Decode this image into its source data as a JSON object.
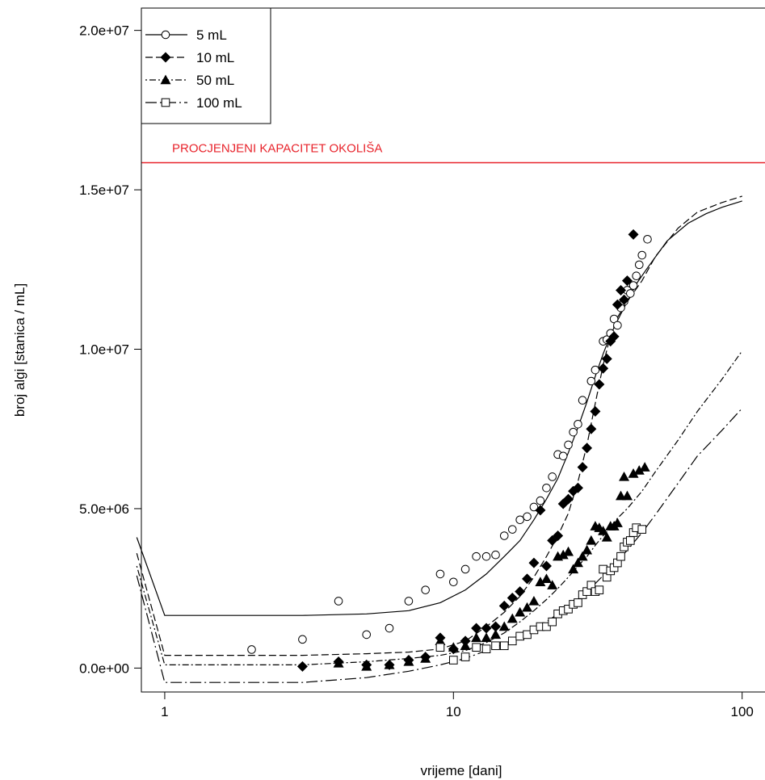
{
  "chart_data": {
    "type": "scatter",
    "xlabel": "vrijeme [dani]",
    "ylabel": "broj algi [stanica / mL]",
    "x_scale": "log",
    "xlim": [
      0.83,
      120
    ],
    "ylim": [
      -750000,
      20700000
    ],
    "x_ticks": [
      1,
      10,
      100
    ],
    "x_tick_labels": [
      "1",
      "10",
      "100"
    ],
    "y_ticks": [
      0,
      5000000,
      10000000,
      15000000,
      20000000
    ],
    "y_tick_labels": [
      "0.0e+00",
      "5.0e+06",
      "1.0e+07",
      "1.5e+07",
      "2.0e+07"
    ],
    "legend_position": "top-left",
    "reference_line": {
      "y": 15850000,
      "label": "PROCJENJENI KAPACITET OKOLIŠA",
      "color": "#e8232b"
    },
    "series": [
      {
        "name": "5 mL",
        "marker": "circle-open",
        "line_style": "solid",
        "points": [
          [
            2,
            580000
          ],
          [
            3,
            900000
          ],
          [
            4,
            2100000
          ],
          [
            5,
            1050000
          ],
          [
            6,
            1250000
          ],
          [
            7,
            2100000
          ],
          [
            8,
            2450000
          ],
          [
            9,
            2950000
          ],
          [
            10,
            2700000
          ],
          [
            11,
            3100000
          ],
          [
            12,
            3500000
          ],
          [
            13,
            3500000
          ],
          [
            14,
            3550000
          ],
          [
            15,
            4150000
          ],
          [
            16,
            4350000
          ],
          [
            17,
            4650000
          ],
          [
            18,
            4750000
          ],
          [
            19,
            5050000
          ],
          [
            20,
            5250000
          ],
          [
            21,
            5650000
          ],
          [
            22,
            6000000
          ],
          [
            23,
            6700000
          ],
          [
            24,
            6650000
          ],
          [
            25,
            7000000
          ],
          [
            26,
            7400000
          ],
          [
            27,
            7650000
          ],
          [
            28,
            8400000
          ],
          [
            30,
            9000000
          ],
          [
            31,
            9350000
          ],
          [
            33,
            10250000
          ],
          [
            34,
            10300000
          ],
          [
            35,
            10500000
          ],
          [
            36,
            10950000
          ],
          [
            37,
            10750000
          ],
          [
            38,
            11300000
          ],
          [
            39,
            11500000
          ],
          [
            40,
            11850000
          ],
          [
            41,
            11750000
          ],
          [
            42,
            12000000
          ],
          [
            43,
            12300000
          ],
          [
            44,
            12650000
          ],
          [
            45,
            12950000
          ],
          [
            47,
            13450000
          ]
        ],
        "fit": [
          [
            0.8,
            4100000
          ],
          [
            1,
            1650000
          ],
          [
            3,
            1650000
          ],
          [
            5,
            1700000
          ],
          [
            7,
            1800000
          ],
          [
            9,
            2050000
          ],
          [
            11,
            2450000
          ],
          [
            13,
            2950000
          ],
          [
            15,
            3500000
          ],
          [
            17,
            4000000
          ],
          [
            19,
            4650000
          ],
          [
            21,
            5300000
          ],
          [
            23,
            5950000
          ],
          [
            25,
            6750000
          ],
          [
            27,
            7550000
          ],
          [
            29,
            8350000
          ],
          [
            31,
            9150000
          ],
          [
            33,
            9850000
          ],
          [
            35,
            10450000
          ],
          [
            37,
            10900000
          ],
          [
            40,
            11500000
          ],
          [
            43,
            12050000
          ],
          [
            47,
            12550000
          ],
          [
            55,
            13400000
          ],
          [
            65,
            13950000
          ],
          [
            75,
            14250000
          ],
          [
            85,
            14450000
          ],
          [
            100,
            14650000
          ]
        ]
      },
      {
        "name": "10 mL",
        "marker": "diamond-filled",
        "line_style": "dashed",
        "points": [
          [
            3,
            50000
          ],
          [
            4,
            200000
          ],
          [
            5,
            100000
          ],
          [
            6,
            100000
          ],
          [
            7,
            250000
          ],
          [
            8,
            350000
          ],
          [
            9,
            950000
          ],
          [
            10,
            600000
          ],
          [
            11,
            850000
          ],
          [
            12,
            1250000
          ],
          [
            13,
            1250000
          ],
          [
            14,
            1300000
          ],
          [
            15,
            1950000
          ],
          [
            16,
            2200000
          ],
          [
            17,
            2400000
          ],
          [
            18,
            2800000
          ],
          [
            19,
            3300000
          ],
          [
            20,
            4950000
          ],
          [
            21,
            3200000
          ],
          [
            22,
            4000000
          ],
          [
            23,
            4150000
          ],
          [
            24,
            5150000
          ],
          [
            25,
            5300000
          ],
          [
            26,
            5550000
          ],
          [
            27,
            5650000
          ],
          [
            28,
            6300000
          ],
          [
            29,
            6900000
          ],
          [
            30,
            7500000
          ],
          [
            31,
            8050000
          ],
          [
            32,
            8900000
          ],
          [
            33,
            9400000
          ],
          [
            34,
            9700000
          ],
          [
            35,
            10250000
          ],
          [
            36,
            10400000
          ],
          [
            37,
            11400000
          ],
          [
            38,
            11850000
          ],
          [
            39,
            11550000
          ],
          [
            40,
            12150000
          ],
          [
            42,
            13600000
          ]
        ],
        "fit": [
          [
            0.8,
            3600000
          ],
          [
            1,
            400000
          ],
          [
            3,
            400000
          ],
          [
            5,
            450000
          ],
          [
            7,
            500000
          ],
          [
            9,
            600000
          ],
          [
            11,
            850000
          ],
          [
            13,
            1300000
          ],
          [
            15,
            1750000
          ],
          [
            17,
            2250000
          ],
          [
            19,
            2850000
          ],
          [
            21,
            3500000
          ],
          [
            23,
            4150000
          ],
          [
            25,
            4850000
          ],
          [
            27,
            5850000
          ],
          [
            29,
            7000000
          ],
          [
            31,
            8300000
          ],
          [
            33,
            9500000
          ],
          [
            35,
            10450000
          ],
          [
            37,
            11000000
          ],
          [
            40,
            11500000
          ],
          [
            45,
            12150000
          ],
          [
            50,
            12900000
          ],
          [
            60,
            13800000
          ],
          [
            70,
            14300000
          ],
          [
            85,
            14600000
          ],
          [
            100,
            14800000
          ]
        ]
      },
      {
        "name": "50 mL",
        "marker": "triangle-filled",
        "line_style": "dot-dash",
        "points": [
          [
            4,
            150000
          ],
          [
            5,
            50000
          ],
          [
            6,
            100000
          ],
          [
            7,
            200000
          ],
          [
            8,
            300000
          ],
          [
            9,
            850000
          ],
          [
            10,
            650000
          ],
          [
            11,
            700000
          ],
          [
            12,
            950000
          ],
          [
            13,
            950000
          ],
          [
            14,
            1050000
          ],
          [
            15,
            1300000
          ],
          [
            16,
            1550000
          ],
          [
            17,
            1750000
          ],
          [
            18,
            1900000
          ],
          [
            19,
            2100000
          ],
          [
            20,
            2700000
          ],
          [
            21,
            2800000
          ],
          [
            22,
            2600000
          ],
          [
            23,
            3500000
          ],
          [
            24,
            3550000
          ],
          [
            25,
            3650000
          ],
          [
            26,
            3100000
          ],
          [
            27,
            3300000
          ],
          [
            28,
            3500000
          ],
          [
            29,
            3700000
          ],
          [
            30,
            4000000
          ],
          [
            31,
            4450000
          ],
          [
            32,
            4400000
          ],
          [
            33,
            4300000
          ],
          [
            34,
            4100000
          ],
          [
            35,
            4450000
          ],
          [
            36,
            4450000
          ],
          [
            37,
            4550000
          ],
          [
            38,
            5400000
          ],
          [
            39,
            6000000
          ],
          [
            40,
            5400000
          ],
          [
            42,
            6100000
          ],
          [
            44,
            6200000
          ],
          [
            46,
            6300000
          ]
        ],
        "fit": [
          [
            0.8,
            3200000
          ],
          [
            1,
            100000
          ],
          [
            3,
            100000
          ],
          [
            5,
            200000
          ],
          [
            7,
            300000
          ],
          [
            9,
            400000
          ],
          [
            11,
            550000
          ],
          [
            13,
            800000
          ],
          [
            15,
            1100000
          ],
          [
            17,
            1450000
          ],
          [
            19,
            1800000
          ],
          [
            21,
            2150000
          ],
          [
            23,
            2500000
          ],
          [
            25,
            2850000
          ],
          [
            27,
            3200000
          ],
          [
            29,
            3500000
          ],
          [
            31,
            3850000
          ],
          [
            33,
            4150000
          ],
          [
            35,
            4400000
          ],
          [
            37,
            4700000
          ],
          [
            40,
            5000000
          ],
          [
            45,
            5550000
          ],
          [
            50,
            6150000
          ],
          [
            60,
            7150000
          ],
          [
            70,
            8050000
          ],
          [
            85,
            9050000
          ],
          [
            100,
            9950000
          ]
        ]
      },
      {
        "name": "100 mL",
        "marker": "square-open",
        "line_style": "long-dash-dot",
        "points": [
          [
            9,
            650000
          ],
          [
            10,
            250000
          ],
          [
            11,
            350000
          ],
          [
            12,
            650000
          ],
          [
            13,
            600000
          ],
          [
            14,
            700000
          ],
          [
            15,
            700000
          ],
          [
            16,
            850000
          ],
          [
            17,
            1000000
          ],
          [
            18,
            1050000
          ],
          [
            19,
            1200000
          ],
          [
            20,
            1300000
          ],
          [
            21,
            1300000
          ],
          [
            22,
            1450000
          ],
          [
            23,
            1700000
          ],
          [
            24,
            1800000
          ],
          [
            25,
            1850000
          ],
          [
            26,
            2000000
          ],
          [
            27,
            2050000
          ],
          [
            28,
            2300000
          ],
          [
            29,
            2400000
          ],
          [
            30,
            2600000
          ],
          [
            31,
            2400000
          ],
          [
            32,
            2450000
          ],
          [
            33,
            3100000
          ],
          [
            34,
            2850000
          ],
          [
            35,
            3050000
          ],
          [
            36,
            3150000
          ],
          [
            37,
            3300000
          ],
          [
            38,
            3500000
          ],
          [
            39,
            3800000
          ],
          [
            40,
            3950000
          ],
          [
            41,
            4000000
          ],
          [
            42,
            4250000
          ],
          [
            43,
            4400000
          ],
          [
            45,
            4350000
          ]
        ],
        "fit": [
          [
            0.8,
            2900000
          ],
          [
            1,
            -450000
          ],
          [
            3,
            -450000
          ],
          [
            5,
            -300000
          ],
          [
            7,
            -100000
          ],
          [
            9,
            100000
          ],
          [
            11,
            300000
          ],
          [
            13,
            550000
          ],
          [
            15,
            750000
          ],
          [
            17,
            950000
          ],
          [
            19,
            1200000
          ],
          [
            21,
            1450000
          ],
          [
            23,
            1700000
          ],
          [
            25,
            1950000
          ],
          [
            27,
            2200000
          ],
          [
            29,
            2450000
          ],
          [
            31,
            2650000
          ],
          [
            33,
            2900000
          ],
          [
            35,
            3150000
          ],
          [
            37,
            3350000
          ],
          [
            40,
            3700000
          ],
          [
            45,
            4250000
          ],
          [
            50,
            4800000
          ],
          [
            60,
            5800000
          ],
          [
            70,
            6650000
          ],
          [
            85,
            7450000
          ],
          [
            100,
            8150000
          ]
        ]
      }
    ]
  }
}
